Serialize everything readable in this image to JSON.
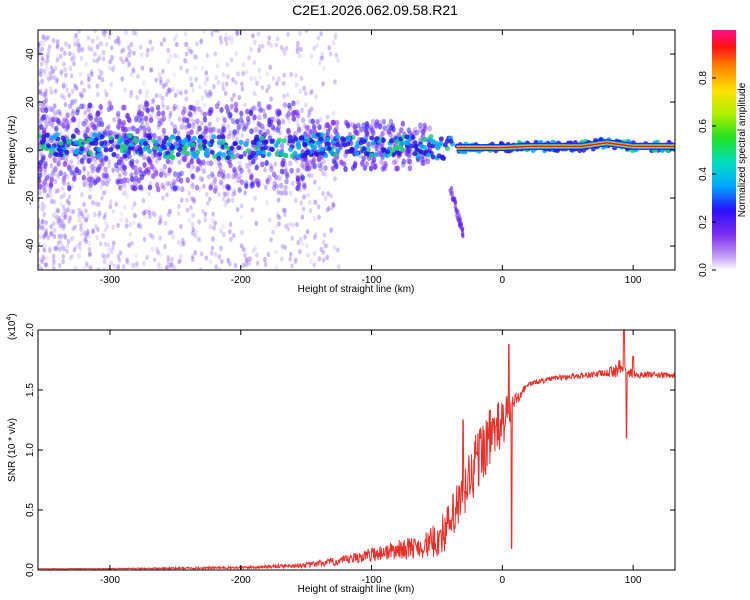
{
  "title": "C2E1.2026.062.09.58.R21",
  "colors": {
    "snr_line": "#e8302a",
    "ridge_core": "#e02020",
    "band_blue": "#2a18e0",
    "scatter_purple": "#8a5af0"
  },
  "chart_data": [
    {
      "type": "heatmap",
      "name": "spectrogram",
      "xlabel": "Height of straight line (km)",
      "ylabel": "Frequency (Hz)",
      "xlim": [
        -355,
        132
      ],
      "ylim": [
        -50,
        50
      ],
      "xticks": [
        -300,
        -200,
        -100,
        0,
        100
      ],
      "xtick_labels": [
        "-300",
        "-200",
        "-100",
        "0",
        "100"
      ],
      "yticks": [
        40,
        20,
        0,
        -20,
        -40
      ],
      "ytick_labels": [
        "40",
        "20",
        "0",
        "-20",
        "-40"
      ],
      "colorbar": {
        "label": "Normalized spectral amplitude",
        "range": [
          0,
          1
        ],
        "ticks": [
          0.0,
          0.2,
          0.4,
          0.6,
          0.8
        ],
        "tick_labels": [
          "0.0",
          "0.2",
          "0.4",
          "0.6",
          "0.8"
        ]
      },
      "ridge": {
        "description_points_km_hz": [
          [
            -340,
            2
          ],
          [
            -300,
            2
          ],
          [
            -250,
            1
          ],
          [
            -200,
            1
          ],
          [
            -150,
            2
          ],
          [
            -120,
            2
          ],
          [
            -100,
            2
          ],
          [
            -80,
            2
          ],
          [
            -50,
            1
          ],
          [
            -30,
            1
          ],
          [
            -10,
            1
          ],
          [
            0,
            1
          ],
          [
            20,
            1.5
          ],
          [
            60,
            1.5
          ],
          [
            80,
            3
          ],
          [
            100,
            1.5
          ],
          [
            132,
            1.5
          ]
        ],
        "strong_from_km": -35
      },
      "tail": [
        [
          -40,
          -15
        ],
        [
          -30,
          -35
        ]
      ]
    },
    {
      "type": "line",
      "name": "snr",
      "xlabel": "Height of straight line (km)",
      "ylabel": "SNR (10 * v/v)",
      "multiplier_label": "(x10",
      "multiplier_exp": "4",
      "xlim": [
        -355,
        132
      ],
      "ylim": [
        0,
        2.0
      ],
      "xticks": [
        -300,
        -200,
        -100,
        0,
        100
      ],
      "xtick_labels": [
        "-300",
        "-200",
        "-100",
        "0",
        "100"
      ],
      "yticks": [
        0.0,
        0.5,
        1.0,
        1.5,
        2.0
      ],
      "ytick_labels": [
        "0.0",
        "0.5",
        "1.0",
        "1.5",
        "2.0"
      ],
      "envelope": {
        "x": [
          -355,
          -300,
          -200,
          -150,
          -120,
          -100,
          -80,
          -60,
          -50,
          -40,
          -30,
          -20,
          -10,
          0,
          10,
          20,
          40,
          60,
          80,
          90,
          100,
          132
        ],
        "y": [
          0.01,
          0.01,
          0.02,
          0.04,
          0.08,
          0.13,
          0.17,
          0.2,
          0.25,
          0.38,
          0.62,
          0.9,
          1.1,
          1.22,
          1.42,
          1.55,
          1.6,
          1.62,
          1.64,
          1.68,
          1.63,
          1.62
        ]
      },
      "noise_amplitude": [
        0.002,
        0.004,
        0.01,
        0.02,
        0.04,
        0.06,
        0.08,
        0.1,
        0.15,
        0.2,
        0.25,
        0.28,
        0.25,
        0.22,
        0.06,
        0.02,
        0.02,
        0.025,
        0.03,
        0.08,
        0.03,
        0.02
      ],
      "spikes": [
        [
          -30,
          1.25
        ],
        [
          -5,
          1.2
        ],
        [
          5,
          1.88
        ],
        [
          7,
          0.18
        ],
        [
          93,
          2.0
        ],
        [
          95,
          1.1
        ],
        [
          100,
          1.78
        ]
      ]
    }
  ]
}
